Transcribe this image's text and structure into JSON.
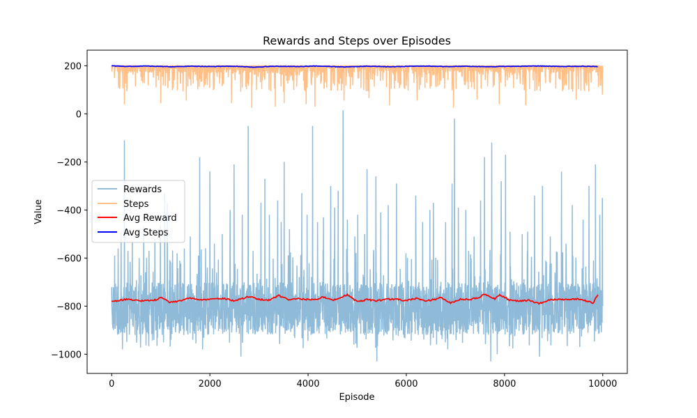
{
  "chart_data": {
    "type": "line",
    "title": "Rewards and Steps over Episodes",
    "xlabel": "Episode",
    "ylabel": "Value",
    "xlim": [
      -500,
      10500
    ],
    "ylim": [
      -1080,
      265
    ],
    "xticks": [
      0,
      2000,
      4000,
      6000,
      8000,
      10000
    ],
    "xtick_labels": [
      "0",
      "2000",
      "4000",
      "6000",
      "8000",
      "10000"
    ],
    "yticks": [
      200,
      0,
      -200,
      -400,
      -600,
      -800,
      -1000
    ],
    "ytick_labels": [
      "200",
      "0",
      "−200",
      "−400",
      "−600",
      "−800",
      "−1000"
    ],
    "grid": false,
    "legend_position": "center-left",
    "episodes": 10000,
    "series": [
      {
        "name": "Rewards",
        "color": "#1f77b4",
        "opacity": 0.5,
        "typical_range": [
          -920,
          -700
        ],
        "min": -1030,
        "max": 15,
        "spikes": [
          [
            60,
            -590
          ],
          [
            130,
            -560
          ],
          [
            190,
            -490
          ],
          [
            260,
            -110
          ],
          [
            330,
            -570
          ],
          [
            420,
            -530
          ],
          [
            560,
            -600
          ],
          [
            650,
            -470
          ],
          [
            760,
            -570
          ],
          [
            880,
            -520
          ],
          [
            990,
            -460
          ],
          [
            1080,
            -330
          ],
          [
            1130,
            -370
          ],
          [
            1230,
            -620
          ],
          [
            1330,
            -580
          ],
          [
            1480,
            -560
          ],
          [
            1600,
            -510
          ],
          [
            1790,
            -180
          ],
          [
            1910,
            -560
          ],
          [
            2000,
            -240
          ],
          [
            2090,
            -540
          ],
          [
            2250,
            -500
          ],
          [
            2410,
            -400
          ],
          [
            2490,
            -210
          ],
          [
            2660,
            -420
          ],
          [
            2780,
            -50
          ],
          [
            2880,
            -570
          ],
          [
            3040,
            -370
          ],
          [
            3120,
            -270
          ],
          [
            3210,
            -420
          ],
          [
            3380,
            -360
          ],
          [
            3450,
            -450
          ],
          [
            3510,
            -200
          ],
          [
            3620,
            -480
          ],
          [
            3870,
            -330
          ],
          [
            3980,
            -420
          ],
          [
            4090,
            -50
          ],
          [
            4190,
            -450
          ],
          [
            4310,
            -430
          ],
          [
            4460,
            -300
          ],
          [
            4540,
            -390
          ],
          [
            4610,
            -320
          ],
          [
            4710,
            15
          ],
          [
            4800,
            -440
          ],
          [
            4950,
            -510
          ],
          [
            5010,
            -420
          ],
          [
            5150,
            -500
          ],
          [
            5200,
            -230
          ],
          [
            5380,
            -260
          ],
          [
            5480,
            -410
          ],
          [
            5630,
            -380
          ],
          [
            5800,
            -290
          ],
          [
            5990,
            -580
          ],
          [
            6190,
            -340
          ],
          [
            6330,
            -450
          ],
          [
            6480,
            -400
          ],
          [
            6550,
            -370
          ],
          [
            6800,
            -450
          ],
          [
            6930,
            -290
          ],
          [
            6980,
            -20
          ],
          [
            7060,
            -390
          ],
          [
            7210,
            -400
          ],
          [
            7380,
            -510
          ],
          [
            7510,
            -360
          ],
          [
            7590,
            -180
          ],
          [
            7740,
            -120
          ],
          [
            7930,
            -280
          ],
          [
            8020,
            -170
          ],
          [
            8110,
            -490
          ],
          [
            8360,
            -500
          ],
          [
            8470,
            -490
          ],
          [
            8610,
            -340
          ],
          [
            8770,
            -300
          ],
          [
            8930,
            -510
          ],
          [
            9160,
            -240
          ],
          [
            9250,
            -540
          ],
          [
            9380,
            -380
          ],
          [
            9600,
            -440
          ],
          [
            9720,
            -300
          ],
          [
            9850,
            -210
          ],
          [
            9940,
            -420
          ],
          [
            9990,
            -350
          ]
        ],
        "dips": [
          [
            220,
            -980
          ],
          [
            1850,
            -980
          ],
          [
            2630,
            -1010
          ],
          [
            5400,
            -1030
          ],
          [
            7720,
            -1030
          ],
          [
            7850,
            -1000
          ],
          [
            8710,
            -1010
          ],
          [
            9530,
            -970
          ]
        ]
      },
      {
        "name": "Steps",
        "color": "#ff7f0e",
        "opacity": 0.5,
        "typical_range": [
          150,
          200
        ],
        "min": 25,
        "max": 200,
        "dips": [
          [
            260,
            40
          ],
          [
            1000,
            45
          ],
          [
            1520,
            55
          ],
          [
            2440,
            45
          ],
          [
            2850,
            25
          ],
          [
            3330,
            30
          ],
          [
            3510,
            45
          ],
          [
            3960,
            40
          ],
          [
            4140,
            30
          ],
          [
            4730,
            55
          ],
          [
            5240,
            65
          ],
          [
            5660,
            35
          ],
          [
            6220,
            55
          ],
          [
            6960,
            25
          ],
          [
            7440,
            60
          ],
          [
            7890,
            40
          ],
          [
            8430,
            35
          ],
          [
            9460,
            60
          ],
          [
            9990,
            80
          ]
        ]
      },
      {
        "name": "Avg Reward",
        "color": "#ff0000",
        "range": [
          -795,
          -740
        ],
        "start": 0,
        "end": 9900,
        "mean": -775,
        "points": [
          [
            0,
            -780
          ],
          [
            300,
            -772
          ],
          [
            600,
            -778
          ],
          [
            900,
            -775
          ],
          [
            1000,
            -765
          ],
          [
            1200,
            -785
          ],
          [
            1400,
            -778
          ],
          [
            1600,
            -766
          ],
          [
            1800,
            -774
          ],
          [
            2000,
            -771
          ],
          [
            2300,
            -768
          ],
          [
            2500,
            -778
          ],
          [
            2800,
            -760
          ],
          [
            3000,
            -772
          ],
          [
            3200,
            -775
          ],
          [
            3400,
            -756
          ],
          [
            3600,
            -772
          ],
          [
            3800,
            -768
          ],
          [
            4000,
            -773
          ],
          [
            4200,
            -772
          ],
          [
            4300,
            -760
          ],
          [
            4500,
            -776
          ],
          [
            4800,
            -752
          ],
          [
            5000,
            -782
          ],
          [
            5200,
            -773
          ],
          [
            5400,
            -778
          ],
          [
            5600,
            -771
          ],
          [
            5800,
            -772
          ],
          [
            6000,
            -777
          ],
          [
            6200,
            -768
          ],
          [
            6400,
            -777
          ],
          [
            6600,
            -772
          ],
          [
            6700,
            -762
          ],
          [
            6900,
            -787
          ],
          [
            7100,
            -770
          ],
          [
            7300,
            -773
          ],
          [
            7500,
            -762
          ],
          [
            7600,
            -750
          ],
          [
            7800,
            -770
          ],
          [
            7900,
            -752
          ],
          [
            8100,
            -775
          ],
          [
            8300,
            -779
          ],
          [
            8500,
            -776
          ],
          [
            8700,
            -790
          ],
          [
            8900,
            -775
          ],
          [
            9100,
            -772
          ],
          [
            9300,
            -773
          ],
          [
            9500,
            -770
          ],
          [
            9700,
            -780
          ],
          [
            9800,
            -790
          ],
          [
            9900,
            -752
          ]
        ]
      },
      {
        "name": "Avg Steps",
        "color": "#0000ff",
        "points": [
          [
            0,
            200
          ],
          [
            300,
            197
          ],
          [
            700,
            199
          ],
          [
            1200,
            196
          ],
          [
            1600,
            198
          ],
          [
            2000,
            197
          ],
          [
            2500,
            198
          ],
          [
            2900,
            194
          ],
          [
            3300,
            198
          ],
          [
            3800,
            197
          ],
          [
            4200,
            199
          ],
          [
            4700,
            195
          ],
          [
            5200,
            198
          ],
          [
            5700,
            196
          ],
          [
            6300,
            199
          ],
          [
            6800,
            197
          ],
          [
            7200,
            198
          ],
          [
            7700,
            196
          ],
          [
            8200,
            198
          ],
          [
            8700,
            199
          ],
          [
            9200,
            197
          ],
          [
            9600,
            198
          ],
          [
            9900,
            197
          ]
        ]
      }
    ]
  }
}
